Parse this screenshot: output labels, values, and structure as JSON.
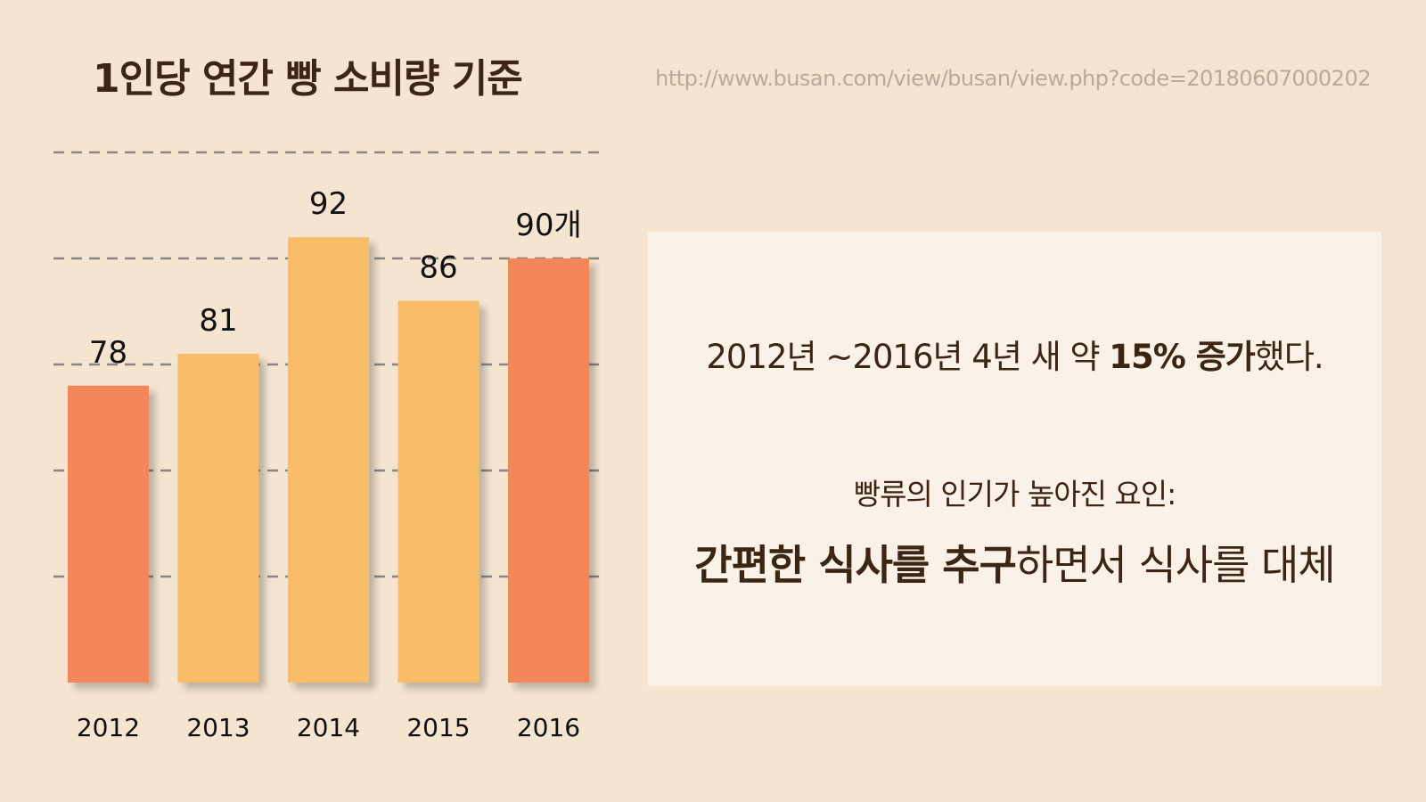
{
  "title": "1인당 연간 빵 소비량 기준",
  "source": "http://www.busan.com/view/busan/view.php?code=20180607000202",
  "chart_data": {
    "type": "bar",
    "categories": [
      "2012",
      "2013",
      "2014",
      "2015",
      "2016"
    ],
    "values": [
      78,
      81,
      92,
      86,
      90
    ],
    "value_labels": [
      "78",
      "81",
      "92",
      "86",
      "90개"
    ],
    "bar_colors": [
      "#f2875a",
      "#f9bc67",
      "#f9bc67",
      "#f9bc67",
      "#f2875a"
    ],
    "ylim": [
      50,
      100
    ],
    "yticks": [
      60,
      70,
      80,
      90,
      100
    ],
    "grid": true
  },
  "panel": {
    "line1_prefix": "2012년 ~2016년 4년 새 약 ",
    "line1_strong": "15% 증가",
    "line1_suffix": "했다.",
    "line2": "빵류의 인기가 높아진 요인:",
    "line3_strong_1": "간편한 식사를 추구",
    "line3_normal": "하면서 식사를 대체"
  }
}
